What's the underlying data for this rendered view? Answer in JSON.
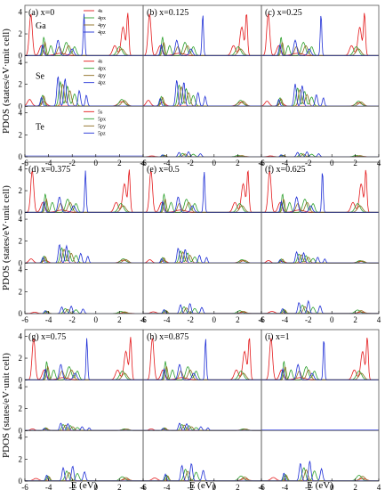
{
  "chart_data": {
    "type": "line",
    "y_axis_label": "PDOS (states/eV·unit cell)",
    "x_axis_label": "E (eV)",
    "xlim": [
      -6,
      4
    ],
    "ylim": [
      0,
      4.6
    ],
    "x_ticks": [
      "-6",
      "-4",
      "-2",
      "0",
      "2",
      "4"
    ],
    "y_ticks": [
      "0",
      "2",
      "4"
    ],
    "colors": {
      "s": "#e41a1c",
      "px": "#2ca02c",
      "py": "#8c6d1f",
      "pz": "#1f2fd6"
    },
    "species": [
      "Ga",
      "Se",
      "Te"
    ],
    "legends": {
      "Ga": [
        "4s",
        "4px",
        "4py",
        "4pz"
      ],
      "Se": [
        "4s",
        "4px",
        "4py",
        "4pz"
      ],
      "Te": [
        "5s",
        "5px",
        "5py",
        "5pz"
      ]
    },
    "panels": [
      {
        "label": "(a) x=0"
      },
      {
        "label": "(b) x=0.125"
      },
      {
        "label": "(c) x=0.25"
      },
      {
        "label": "(d) x=0.375"
      },
      {
        "label": "(e) x=0.5"
      },
      {
        "label": "(f) x=0.625"
      },
      {
        "label": "(g) x=0.75"
      },
      {
        "label": "(h) x=0.875"
      },
      {
        "label": "(i) x=1"
      }
    ]
  }
}
